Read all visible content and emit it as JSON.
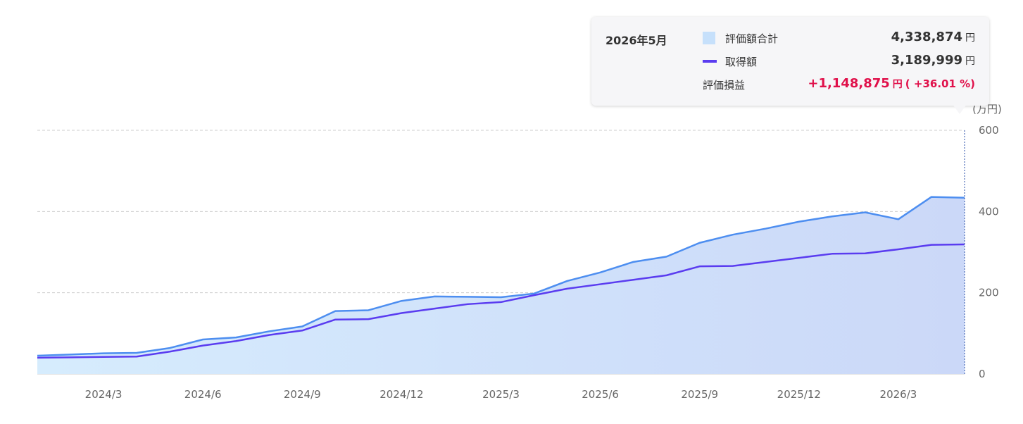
{
  "chart_data": {
    "type": "area",
    "x": [
      "2024/1",
      "2024/2",
      "2024/3",
      "2024/4",
      "2024/5",
      "2024/6",
      "2024/7",
      "2024/8",
      "2024/9",
      "2024/10",
      "2024/11",
      "2024/12",
      "2025/1",
      "2025/2",
      "2025/3",
      "2025/4",
      "2025/5",
      "2025/6",
      "2025/7",
      "2025/8",
      "2025/9",
      "2025/10",
      "2025/11",
      "2025/12",
      "2026/1",
      "2026/2",
      "2026/3",
      "2026/4",
      "2026/5"
    ],
    "x_tick_labels": [
      "2024/3",
      "2024/6",
      "2024/9",
      "2024/12",
      "2025/3",
      "2025/6",
      "2025/9",
      "2025/12",
      "2026/3"
    ],
    "series": [
      {
        "name": "評価額合計",
        "style": "area",
        "values": [
          45,
          48,
          51,
          52,
          64,
          85,
          90,
          105,
          117,
          155,
          157,
          180,
          191,
          190,
          189,
          198,
          229,
          250,
          276,
          289,
          323,
          343,
          358,
          375,
          388,
          398,
          381,
          436,
          434
        ]
      },
      {
        "name": "取得額",
        "style": "line",
        "values": [
          40,
          41,
          42,
          43,
          55,
          70,
          81,
          96,
          107,
          134,
          135,
          150,
          161,
          172,
          177,
          194,
          210,
          221,
          232,
          243,
          265,
          266,
          276,
          286,
          296,
          297,
          307,
          318,
          319
        ]
      }
    ],
    "ylim": [
      0,
      600
    ],
    "y_ticks": [
      "0",
      "200",
      "400",
      "600"
    ],
    "y_unit": "(万円)",
    "grid": true,
    "colors": {
      "area_line": "#4d8ef0",
      "area_fill_left": "#d6ecfd",
      "area_fill_right": "#cbd8f8",
      "cost_line": "#5a3cf0",
      "grid": "#cccccc"
    }
  },
  "tooltip": {
    "month": "2026年5月",
    "total_label": "評価額合計",
    "total_value": "4,338,874",
    "cost_label": "取得額",
    "cost_value": "3,189,999",
    "profit_label": "評価損益",
    "profit_value": "+1,148,875",
    "profit_pct": "( +36.01 %)",
    "unit": "円"
  }
}
